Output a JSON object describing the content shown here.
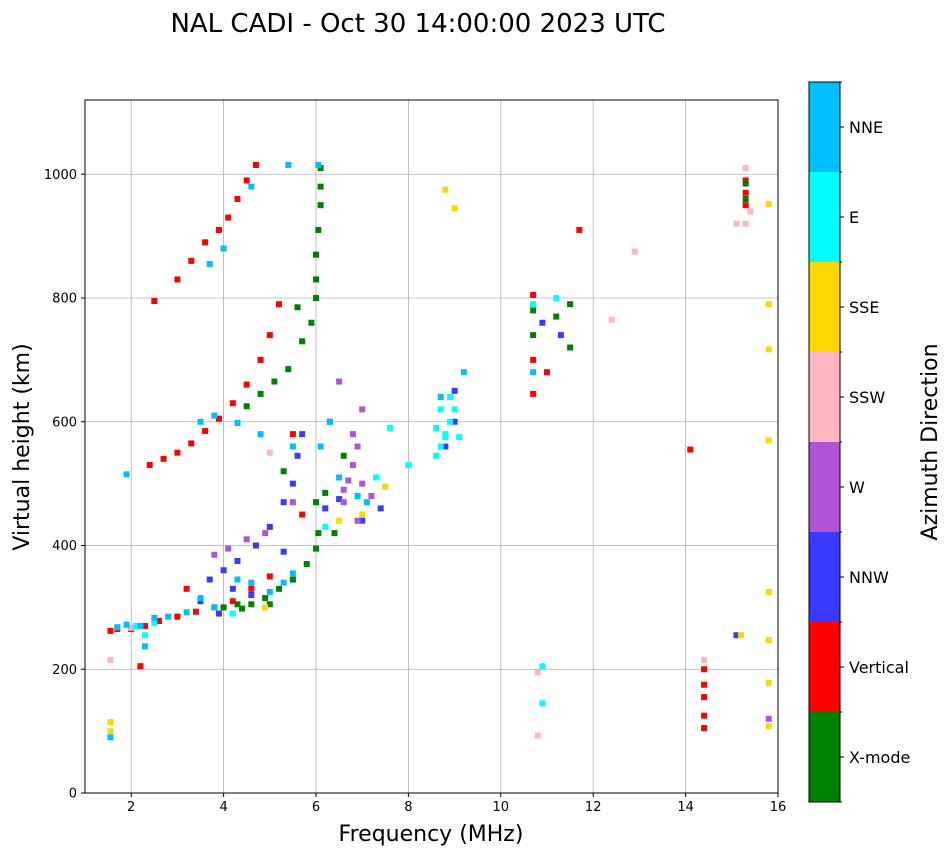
{
  "chart_data": {
    "type": "scatter",
    "title": "NAL CADI - Oct 30 14:00:00 2023 UTC",
    "xlabel": "Frequency (MHz)",
    "ylabel": "Virtual height (km)",
    "xlim": [
      1,
      16
    ],
    "ylim": [
      0,
      1120
    ],
    "xticks": [
      2,
      4,
      6,
      8,
      10,
      12,
      14,
      16
    ],
    "yticks": [
      0,
      200,
      400,
      600,
      800,
      1000
    ],
    "grid": true,
    "colorbar": {
      "label": "Azimuth Direction",
      "categories": [
        {
          "name": "X-mode",
          "color": "#008000"
        },
        {
          "name": "Vertical",
          "color": "#ff0000"
        },
        {
          "name": "NNW",
          "color": "#3a3aff"
        },
        {
          "name": "W",
          "color": "#b054d6"
        },
        {
          "name": "SSW",
          "color": "#ffb6c1"
        },
        {
          "name": "SSE",
          "color": "#ffd700"
        },
        {
          "name": "E",
          "color": "#00ffff"
        },
        {
          "name": "NNE",
          "color": "#00bfff"
        }
      ]
    },
    "series": [
      {
        "name": "Vertical",
        "points": [
          [
            1.55,
            262
          ],
          [
            1.7,
            265
          ],
          [
            2.0,
            265
          ],
          [
            2.3,
            270
          ],
          [
            2.6,
            278
          ],
          [
            3.0,
            285
          ],
          [
            3.4,
            293
          ],
          [
            3.8,
            300
          ],
          [
            4.2,
            310
          ],
          [
            4.6,
            330
          ],
          [
            5.0,
            350
          ],
          [
            2.4,
            530
          ],
          [
            2.7,
            540
          ],
          [
            3.0,
            550
          ],
          [
            3.3,
            565
          ],
          [
            3.6,
            585
          ],
          [
            3.9,
            605
          ],
          [
            4.2,
            630
          ],
          [
            4.5,
            660
          ],
          [
            4.8,
            700
          ],
          [
            5.0,
            740
          ],
          [
            5.2,
            790
          ],
          [
            3.0,
            830
          ],
          [
            3.3,
            860
          ],
          [
            3.6,
            890
          ],
          [
            3.9,
            910
          ],
          [
            4.1,
            930
          ],
          [
            4.3,
            960
          ],
          [
            4.5,
            990
          ],
          [
            4.7,
            1015
          ],
          [
            2.5,
            795
          ],
          [
            10.7,
            645
          ],
          [
            10.7,
            700
          ],
          [
            10.7,
            805
          ],
          [
            11.0,
            680
          ],
          [
            14.1,
            555
          ],
          [
            14.4,
            105
          ],
          [
            14.4,
            125
          ],
          [
            14.4,
            155
          ],
          [
            14.4,
            175
          ],
          [
            14.4,
            200
          ],
          [
            15.3,
            950
          ],
          [
            15.3,
            970
          ],
          [
            15.3,
            990
          ],
          [
            11.7,
            910
          ],
          [
            5.7,
            450
          ],
          [
            5.5,
            580
          ],
          [
            3.2,
            330
          ],
          [
            2.2,
            205
          ]
        ]
      },
      {
        "name": "X-mode",
        "points": [
          [
            4.0,
            300
          ],
          [
            4.3,
            305
          ],
          [
            4.6,
            305
          ],
          [
            4.9,
            315
          ],
          [
            5.2,
            330
          ],
          [
            5.5,
            345
          ],
          [
            5.8,
            370
          ],
          [
            6.0,
            395
          ],
          [
            6.05,
            420
          ],
          [
            4.5,
            625
          ],
          [
            4.8,
            645
          ],
          [
            5.1,
            665
          ],
          [
            5.4,
            685
          ],
          [
            5.7,
            730
          ],
          [
            5.9,
            760
          ],
          [
            6.0,
            800
          ],
          [
            6.0,
            830
          ],
          [
            6.0,
            870
          ],
          [
            6.05,
            910
          ],
          [
            6.1,
            950
          ],
          [
            6.1,
            980
          ],
          [
            6.1,
            1010
          ],
          [
            5.6,
            785
          ],
          [
            6.0,
            470
          ],
          [
            6.2,
            485
          ],
          [
            6.4,
            420
          ],
          [
            6.6,
            545
          ],
          [
            10.7,
            780
          ],
          [
            10.7,
            740
          ],
          [
            11.2,
            770
          ],
          [
            11.5,
            790
          ],
          [
            11.5,
            720
          ],
          [
            15.3,
            960
          ],
          [
            15.3,
            985
          ],
          [
            5.0,
            305
          ],
          [
            4.4,
            298
          ],
          [
            5.3,
            520
          ]
        ]
      },
      {
        "name": "NNW",
        "points": [
          [
            3.7,
            345
          ],
          [
            4.0,
            360
          ],
          [
            4.3,
            375
          ],
          [
            4.7,
            400
          ],
          [
            5.0,
            430
          ],
          [
            5.3,
            470
          ],
          [
            5.5,
            500
          ],
          [
            5.6,
            545
          ],
          [
            5.7,
            580
          ],
          [
            3.5,
            310
          ],
          [
            4.2,
            330
          ],
          [
            4.6,
            320
          ],
          [
            6.2,
            460
          ],
          [
            6.5,
            475
          ],
          [
            7.0,
            440
          ],
          [
            7.4,
            460
          ],
          [
            9.0,
            650
          ],
          [
            9.0,
            600
          ],
          [
            8.8,
            560
          ],
          [
            10.9,
            760
          ],
          [
            11.3,
            740
          ],
          [
            15.1,
            255
          ],
          [
            3.9,
            290
          ],
          [
            6.3,
            600
          ],
          [
            5.3,
            390
          ]
        ]
      },
      {
        "name": "W",
        "points": [
          [
            3.8,
            385
          ],
          [
            4.1,
            395
          ],
          [
            4.5,
            410
          ],
          [
            4.9,
            420
          ],
          [
            6.6,
            490
          ],
          [
            6.7,
            505
          ],
          [
            6.8,
            530
          ],
          [
            6.9,
            560
          ],
          [
            7.0,
            500
          ],
          [
            6.6,
            470
          ],
          [
            7.2,
            480
          ],
          [
            6.8,
            580
          ],
          [
            7.0,
            620
          ],
          [
            6.5,
            665
          ],
          [
            6.9,
            440
          ],
          [
            5.5,
            470
          ],
          [
            15.8,
            120
          ]
        ]
      },
      {
        "name": "SSW",
        "points": [
          [
            1.55,
            215
          ],
          [
            2.0,
            267
          ],
          [
            10.8,
            93
          ],
          [
            10.8,
            195
          ],
          [
            14.4,
            215
          ],
          [
            15.1,
            920
          ],
          [
            15.3,
            920
          ],
          [
            15.3,
            1010
          ],
          [
            15.4,
            940
          ],
          [
            12.4,
            765
          ],
          [
            12.9,
            875
          ],
          [
            5.0,
            550
          ]
        ]
      },
      {
        "name": "SSE",
        "points": [
          [
            1.55,
            100
          ],
          [
            1.55,
            115
          ],
          [
            4.9,
            300
          ],
          [
            6.5,
            440
          ],
          [
            7.0,
            450
          ],
          [
            7.5,
            495
          ],
          [
            8.8,
            975
          ],
          [
            9.0,
            945
          ],
          [
            15.2,
            255
          ],
          [
            15.8,
            108
          ],
          [
            15.8,
            178
          ],
          [
            15.8,
            247
          ],
          [
            15.8,
            325
          ],
          [
            15.8,
            570
          ],
          [
            15.8,
            717
          ],
          [
            15.8,
            790
          ],
          [
            15.8,
            952
          ]
        ]
      },
      {
        "name": "E",
        "points": [
          [
            8.6,
            545
          ],
          [
            8.7,
            560
          ],
          [
            8.8,
            580
          ],
          [
            8.9,
            600
          ],
          [
            8.7,
            620
          ],
          [
            8.9,
            640
          ],
          [
            8.6,
            590
          ],
          [
            8.8,
            575
          ],
          [
            9.0,
            620
          ],
          [
            9.1,
            575
          ],
          [
            10.9,
            145
          ],
          [
            10.9,
            205
          ],
          [
            10.7,
            790
          ],
          [
            11.2,
            800
          ],
          [
            4.2,
            290
          ],
          [
            6.2,
            430
          ],
          [
            7.6,
            590
          ],
          [
            8.0,
            530
          ],
          [
            2.1,
            270
          ],
          [
            2.3,
            255
          ],
          [
            2.5,
            275
          ],
          [
            7.3,
            510
          ]
        ]
      },
      {
        "name": "NNE",
        "points": [
          [
            1.7,
            268
          ],
          [
            1.9,
            272
          ],
          [
            2.2,
            270
          ],
          [
            2.5,
            283
          ],
          [
            2.8,
            285
          ],
          [
            3.2,
            292
          ],
          [
            3.5,
            315
          ],
          [
            3.8,
            300
          ],
          [
            4.3,
            345
          ],
          [
            4.6,
            340
          ],
          [
            5.0,
            325
          ],
          [
            5.3,
            340
          ],
          [
            5.5,
            355
          ],
          [
            6.05,
            1015
          ],
          [
            5.4,
            1015
          ],
          [
            4.6,
            980
          ],
          [
            4.0,
            880
          ],
          [
            3.7,
            855
          ],
          [
            3.5,
            600
          ],
          [
            3.8,
            610
          ],
          [
            4.3,
            598
          ],
          [
            4.8,
            580
          ],
          [
            1.9,
            515
          ],
          [
            6.3,
            600
          ],
          [
            6.5,
            510
          ],
          [
            6.9,
            480
          ],
          [
            7.1,
            470
          ],
          [
            6.1,
            560
          ],
          [
            8.7,
            640
          ],
          [
            9.2,
            680
          ],
          [
            10.7,
            680
          ],
          [
            5.5,
            560
          ],
          [
            2.3,
            237
          ],
          [
            1.55,
            90
          ]
        ]
      }
    ]
  }
}
